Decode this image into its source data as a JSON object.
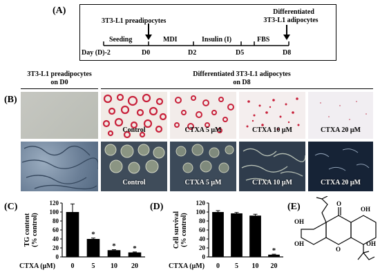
{
  "panel_a": {
    "label": "(A)",
    "preadipocytes": "3T3-L1 preadipocytes",
    "differentiated_line1": "Differentiated",
    "differentiated_line2": "3T3-L1 adipocytes",
    "phases": [
      "Seeding",
      "MDI",
      "Insulin (I)",
      "FBS"
    ],
    "days": [
      "Day (D)-2",
      "D0",
      "D2",
      "D5",
      "D8"
    ]
  },
  "panel_b": {
    "label": "(B)",
    "header_left_line1": "3T3-L1 preadipocytes",
    "header_left_line2": "on D0",
    "header_right_line1": "Differentiated 3T3-L1 adipocytes",
    "header_right_line2": "on D8",
    "top_row_labels": [
      "",
      "Control",
      "CTXA 5 μM",
      "CTXA 10 μM",
      "CTXA 20 μM"
    ],
    "bottom_row_labels": [
      "",
      "Control",
      "CTXA 5 μM",
      "CTXA 10 μM",
      "CTXA 20 μM"
    ],
    "colors": {
      "oil_red": "#c8203a",
      "phase_bg": "#3a4e66"
    }
  },
  "panel_c": {
    "label": "(C)"
  },
  "panel_d": {
    "label": "(D)"
  },
  "panel_e": {
    "label": "(E)",
    "atoms": {
      "o_carbonyl": "O",
      "oh_a": "OH",
      "oh_b": "OH",
      "oh_c": "OH",
      "oh_d": "OH",
      "ring_o": "O"
    }
  },
  "chart_data": [
    {
      "type": "bar",
      "ylabel": "TG content (% control)",
      "xlabel": "CTXA (μM)",
      "categories": [
        "0",
        "5",
        "10",
        "20"
      ],
      "values": [
        100,
        40,
        15,
        10
      ],
      "errors": [
        18,
        2,
        1,
        1
      ],
      "significance": [
        "",
        "*",
        "*",
        "*"
      ],
      "ylim": [
        0,
        120
      ],
      "yticks": [
        "0",
        "20",
        "40",
        "60",
        "80",
        "100",
        "120"
      ]
    },
    {
      "type": "bar",
      "ylabel": "Cell survival (% control)",
      "xlabel": "CTXA (μM)",
      "categories": [
        "0",
        "5",
        "10",
        "20"
      ],
      "values": [
        100,
        97,
        92,
        5
      ],
      "errors": [
        3,
        2,
        3,
        1
      ],
      "significance": [
        "",
        "",
        "",
        "*"
      ],
      "ylim": [
        0,
        120
      ],
      "yticks": [
        "0",
        "20",
        "40",
        "60",
        "80",
        "100",
        "120"
      ]
    }
  ]
}
